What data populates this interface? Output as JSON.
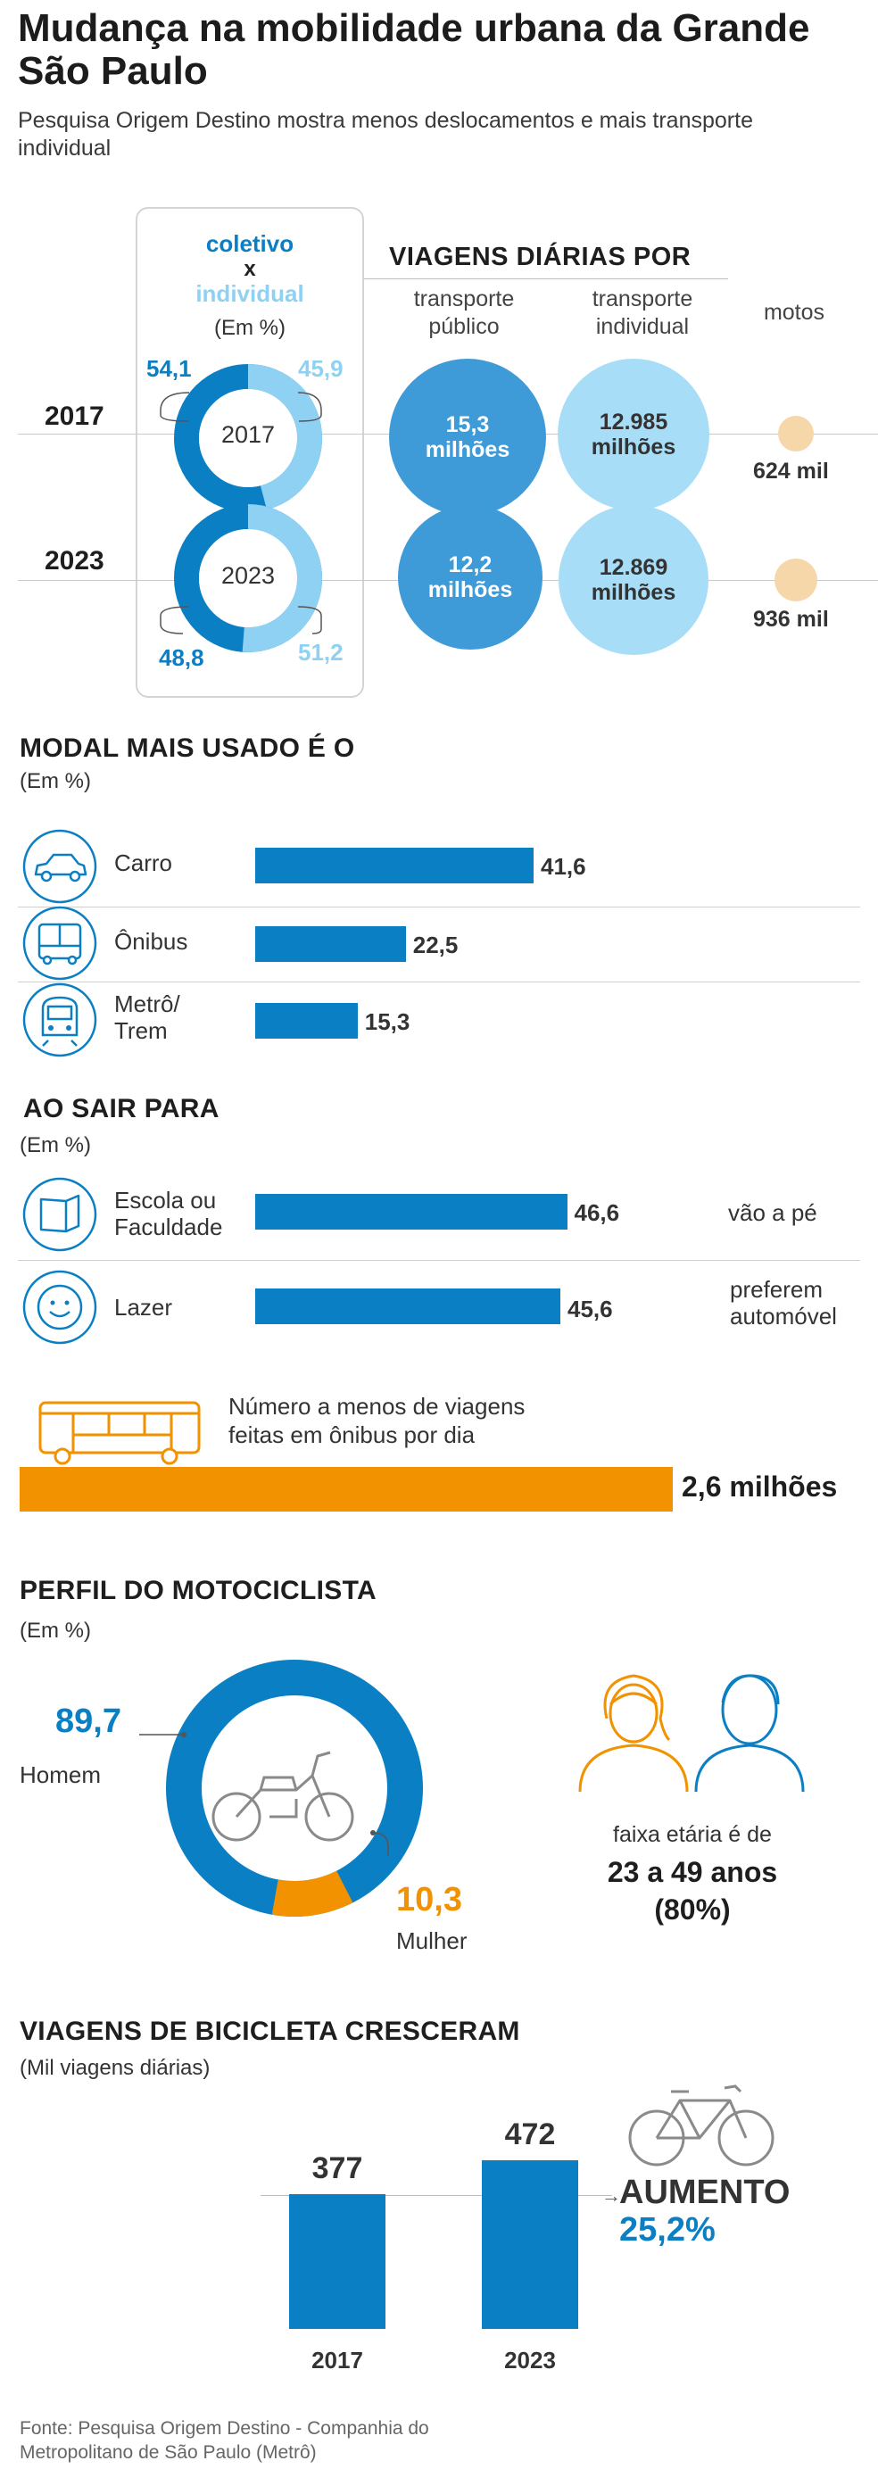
{
  "header": {
    "title": "Mudança na mobilidade urbana da Grande São Paulo",
    "subtitle": "Pesquisa Origem Destino mostra menos deslocamentos e mais transporte individual"
  },
  "comparison": {
    "label_coletivo": "coletivo",
    "label_x": "x",
    "label_individual": "individual",
    "unit": "(Em %)",
    "trips_title": "VIAGENS DIÁRIAS POR",
    "col_public": "transporte público",
    "col_individual": "transporte individual",
    "col_motos": "motos",
    "years": [
      {
        "year": "2017",
        "coletivo": "54,1",
        "individual": "45,9",
        "public": "15,3 milhões",
        "private": "12.985 milhões",
        "motos": "624 mil"
      },
      {
        "year": "2023",
        "coletivo": "48,8",
        "individual": "51,2",
        "public": "12,2 milhões",
        "private": "12.869 milhões",
        "motos": "936 mil"
      }
    ]
  },
  "modal": {
    "title": "MODAL MAIS USADO É O",
    "unit": "(Em %)",
    "items": [
      {
        "label": "Carro",
        "value": "41,6",
        "icon": "car-icon"
      },
      {
        "label": "Ônibus",
        "value": "22,5",
        "icon": "bus-icon"
      },
      {
        "label": "Metrô/ Trem",
        "value": "15,3",
        "icon": "train-icon"
      }
    ]
  },
  "ao_sair": {
    "title": "AO SAIR PARA",
    "unit": "(Em %)",
    "items": [
      {
        "label": "Escola ou Faculdade",
        "value": "46,6",
        "note": "vão a pé",
        "icon": "book-icon"
      },
      {
        "label": "Lazer",
        "value": "45,6",
        "note": "preferem automóvel",
        "icon": "smiley-icon"
      }
    ]
  },
  "onibus": {
    "text": "Número a menos de viagens feitas em ônibus por dia",
    "value": "2,6 milhões"
  },
  "moto": {
    "title": "PERFIL DO MOTOCICLISTA",
    "unit": "(Em %)",
    "homem_value": "89,7",
    "homem_label": "Homem",
    "mulher_value": "10,3",
    "mulher_label": "Mulher",
    "faixa_label": "faixa etária é de",
    "faixa_value": "23 a 49 anos",
    "faixa_pct": "(80%)"
  },
  "bike": {
    "title": "VIAGENS DE BICICLETA CRESCERAM",
    "unit": "(Mil viagens diárias)",
    "aumento_label": "AUMENTO",
    "aumento_value": "25,2%"
  },
  "footer": {
    "source": "Fonte: Pesquisa Origem Destino - Companhia do Metropolitano de São Paulo (Metrô)"
  },
  "colors": {
    "blue": "#0b7fc4",
    "lightblue": "#8fd1f2",
    "orange": "#f39200",
    "peach": "#f6d7aa"
  },
  "chart_data": [
    {
      "type": "pie",
      "title": "coletivo x individual — 2017",
      "unit": "%",
      "categories": [
        "coletivo",
        "individual"
      ],
      "values": [
        54.1,
        45.9
      ]
    },
    {
      "type": "pie",
      "title": "coletivo x individual — 2023",
      "unit": "%",
      "categories": [
        "coletivo",
        "individual"
      ],
      "values": [
        48.8,
        51.2
      ]
    },
    {
      "type": "bar",
      "title": "MODAL MAIS USADO É O",
      "unit": "%",
      "categories": [
        "Carro",
        "Ônibus",
        "Metrô/ Trem"
      ],
      "values": [
        41.6,
        22.5,
        15.3
      ]
    },
    {
      "type": "bar",
      "title": "AO SAIR PARA",
      "unit": "%",
      "categories": [
        "Escola ou Faculdade",
        "Lazer"
      ],
      "values": [
        46.6,
        45.6
      ]
    },
    {
      "type": "pie",
      "title": "PERFIL DO MOTOCICLISTA",
      "unit": "%",
      "categories": [
        "Homem",
        "Mulher"
      ],
      "values": [
        89.7,
        10.3
      ]
    },
    {
      "type": "bar",
      "title": "VIAGENS DE BICICLETA CRESCERAM",
      "ylabel": "(Mil viagens diárias)",
      "categories": [
        "2017",
        "2023"
      ],
      "values": [
        377,
        472
      ]
    }
  ]
}
